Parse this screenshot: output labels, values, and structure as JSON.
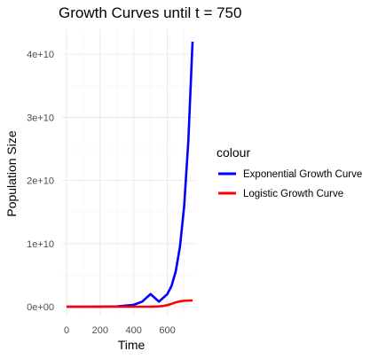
{
  "chart_data": {
    "type": "line",
    "title": "Growth Curves until t = 750",
    "xlabel": "Time",
    "ylabel": "Population Size",
    "xlim": [
      0,
      750
    ],
    "ylim": [
      0,
      42000000000
    ],
    "x_ticks": [
      0,
      200,
      400,
      600
    ],
    "x_tick_labels": [
      "0",
      "200",
      "400",
      "600"
    ],
    "y_ticks": [
      0,
      10000000000,
      20000000000,
      30000000000,
      40000000000
    ],
    "y_tick_labels": [
      "0e+00",
      "1e+10",
      "2e+10",
      "3e+10",
      "4e+10"
    ],
    "grid": true,
    "legend": {
      "title": "colour",
      "position": "right"
    },
    "series": [
      {
        "name": "Exponential Growth Curve",
        "color": "#0000ff",
        "x": [
          0,
          100,
          200,
          300,
          400,
          450,
          500,
          550,
          600,
          625,
          650,
          675,
          700,
          725,
          750
        ],
        "y": [
          0,
          800000,
          6000000,
          42000000,
          300000000,
          800000000,
          2000000000,
          800000000,
          2000000000,
          3300000000,
          5600000000,
          9500000000,
          15900000000,
          26300000000,
          42000000000
        ]
      },
      {
        "name": "Logistic Growth Curve",
        "color": "#ff0000",
        "x": [
          0,
          100,
          200,
          300,
          400,
          450,
          500,
          550,
          575,
          600,
          625,
          650,
          675,
          700,
          725,
          750
        ],
        "y": [
          0,
          0,
          0,
          0,
          0,
          0,
          10000000,
          50000000,
          120000000,
          250000000,
          450000000,
          680000000,
          850000000,
          940000000,
          980000000,
          1000000000
        ]
      }
    ]
  }
}
